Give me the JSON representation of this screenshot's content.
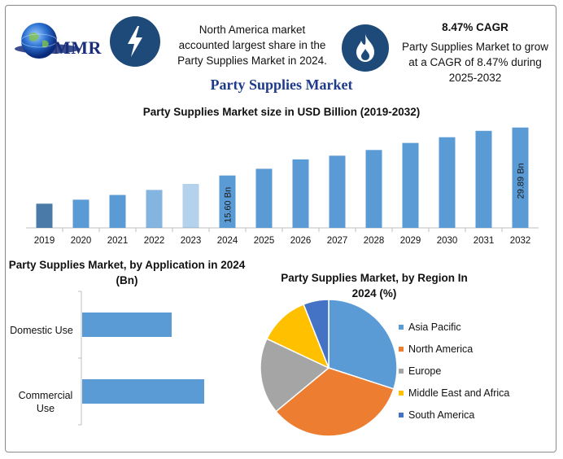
{
  "header": {
    "logo_text": "MMR",
    "info1_text": "North America market accounted largest share in the Party Supplies Market in 2024.",
    "info2_title": "8.47% CAGR",
    "info2_text": "Party Supplies Market to grow at a CAGR of 8.47% during 2025-2032",
    "icons": [
      "lightning-bolt-icon",
      "flame-icon"
    ]
  },
  "main_title": "Party Supplies Market",
  "colors": {
    "bar": "#5b9bd5",
    "bar_dark": "#4a7aa8",
    "icon_bg": "#1e4a79",
    "title": "#1e3a8a",
    "asia_pacific": "#5b9bd5",
    "north_america": "#ed7d31",
    "europe": "#a5a5a5",
    "middle_east_africa": "#ffc000",
    "south_america": "#4472c4"
  },
  "chart_data": [
    {
      "type": "bar",
      "title": "Party Supplies Market size in USD Billion (2019-2032)",
      "categories": [
        "2019",
        "2020",
        "2021",
        "2022",
        "2023",
        "2024",
        "2025",
        "2026",
        "2027",
        "2028",
        "2029",
        "2030",
        "2031",
        "2032"
      ],
      "values": [
        7.2,
        8.4,
        9.8,
        11.3,
        13.1,
        15.6,
        17.6,
        20.4,
        21.5,
        23.2,
        25.3,
        27.0,
        28.9,
        29.89
      ],
      "data_labels": {
        "5": "15.60 Bn",
        "13": "29.89 Bn"
      },
      "ylim": [
        0,
        32
      ]
    },
    {
      "type": "bar",
      "orientation": "horizontal",
      "title": "Party Supplies Market, by Application in 2024 (Bn)",
      "categories": [
        "Domestic Use",
        "Commercial Use"
      ],
      "values": [
        5.5,
        7.5
      ],
      "xlim": [
        0,
        10
      ]
    },
    {
      "type": "pie",
      "title": "Party Supplies Market, by Region In 2024 (%)",
      "labels": [
        "Asia Pacific",
        "North America",
        "Europe",
        "Middle East and Africa",
        "South America"
      ],
      "values": [
        30,
        34,
        18,
        12,
        6
      ],
      "legend": "right"
    }
  ]
}
